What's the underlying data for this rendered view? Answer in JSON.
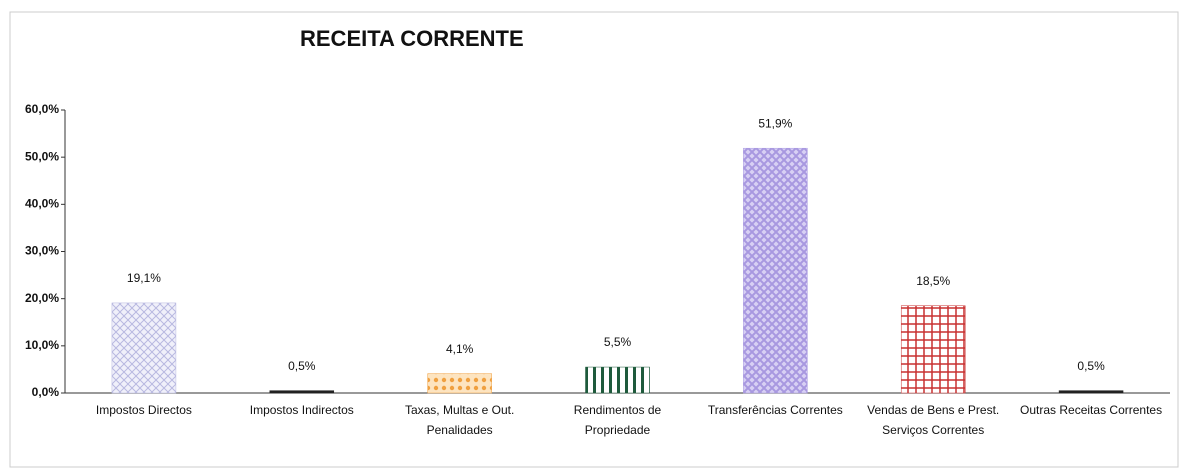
{
  "chart_data": {
    "type": "bar",
    "title": "RECEITA CORRENTE",
    "categories": [
      "Impostos Directos",
      "Impostos Indirectos",
      "Taxas, Multas e Out. Penalidades",
      "Rendimentos de Propriedade",
      "Transferências Correntes",
      "Vendas de Bens e Prest. Serviços Correntes",
      "Outras Receitas Correntes"
    ],
    "values": [
      19.1,
      0.5,
      4.1,
      5.5,
      51.9,
      18.5,
      0.5
    ],
    "value_labels": [
      "19,1%",
      "0,5%",
      "4,1%",
      "5,5%",
      "51,9%",
      "18,5%",
      "0,5%"
    ],
    "colors": [
      "#b8b8e0",
      "#222222",
      "#f0a040",
      "#1e5a3c",
      "#a898e0",
      "#c83030",
      "#222222"
    ],
    "ylim": [
      0,
      60
    ],
    "yticks": [
      {
        "value": 0,
        "label": "0,0%"
      },
      {
        "value": 10,
        "label": "10,0%"
      },
      {
        "value": 20,
        "label": "20,0%"
      },
      {
        "value": 30,
        "label": "30,0%"
      },
      {
        "value": 40,
        "label": "40,0%"
      },
      {
        "value": 50,
        "label": "50,0%"
      },
      {
        "value": 60,
        "label": "60,0%"
      }
    ],
    "grid": false
  }
}
